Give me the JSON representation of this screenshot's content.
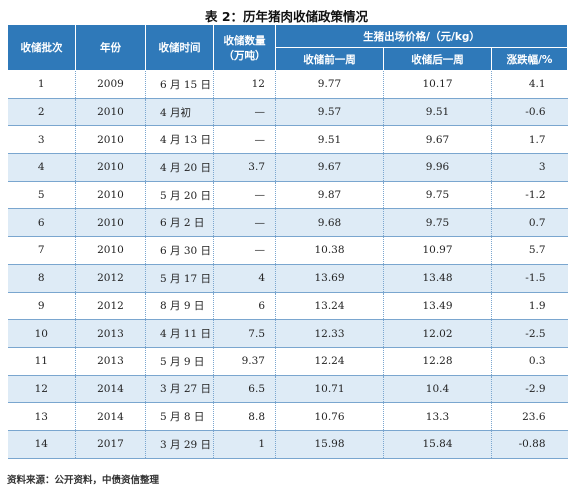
{
  "title": "表 2：历年猪肉收储政策情况",
  "headers": {
    "batch": "收储批次",
    "year": "年份",
    "time": "收储时间",
    "amount_line1": "收储数量",
    "amount_line2": "（万吨）",
    "price_group": "生猪出场价格/（元/kg）",
    "before": "收储前一周",
    "after": "收储后一周",
    "change": "涨跌幅/%"
  },
  "rows": [
    {
      "batch": "1",
      "year": "2009",
      "time": "6 月 15 日",
      "amount": "12",
      "before": "9.77",
      "after": "10.17",
      "change": "4.1"
    },
    {
      "batch": "2",
      "year": "2010",
      "time": "4 月初",
      "amount": "—",
      "before": "9.57",
      "after": "9.51",
      "change": "-0.6"
    },
    {
      "batch": "3",
      "year": "2010",
      "time": "4 月 13 日",
      "amount": "—",
      "before": "9.51",
      "after": "9.67",
      "change": "1.7"
    },
    {
      "batch": "4",
      "year": "2010",
      "time": "4 月 20 日",
      "amount": "3.7",
      "before": "9.67",
      "after": "9.96",
      "change": "3"
    },
    {
      "batch": "5",
      "year": "2010",
      "time": "5 月 20 日",
      "amount": "—",
      "before": "9.87",
      "after": "9.75",
      "change": "-1.2"
    },
    {
      "batch": "6",
      "year": "2010",
      "time": "6 月 2 日",
      "amount": "—",
      "before": "9.68",
      "after": "9.75",
      "change": "0.7"
    },
    {
      "batch": "7",
      "year": "2010",
      "time": "6 月 30 日",
      "amount": "—",
      "before": "10.38",
      "after": "10.97",
      "change": "5.7"
    },
    {
      "batch": "8",
      "year": "2012",
      "time": "5 月 17 日",
      "amount": "4",
      "before": "13.69",
      "after": "13.48",
      "change": "-1.5"
    },
    {
      "batch": "9",
      "year": "2012",
      "time": "8 月 9 日",
      "amount": "6",
      "before": "13.24",
      "after": "13.49",
      "change": "1.9"
    },
    {
      "batch": "10",
      "year": "2013",
      "time": "4 月 11 日",
      "amount": "7.5",
      "before": "12.33",
      "after": "12.02",
      "change": "-2.5"
    },
    {
      "batch": "11",
      "year": "2013",
      "time": "5 月 9 日",
      "amount": "9.37",
      "before": "12.24",
      "after": "12.28",
      "change": "0.3"
    },
    {
      "batch": "12",
      "year": "2014",
      "time": "3 月 27 日",
      "amount": "6.5",
      "before": "10.71",
      "after": "10.4",
      "change": "-2.9"
    },
    {
      "batch": "13",
      "year": "2014",
      "time": "5 月 8 日",
      "amount": "8.8",
      "before": "10.76",
      "after": "13.3",
      "change": "23.6"
    },
    {
      "batch": "14",
      "year": "2017",
      "time": "3 月 29 日",
      "amount": "1",
      "before": "15.98",
      "after": "15.84",
      "change": "-0.88"
    }
  ],
  "source": "资料来源：公开资料，中债资信整理"
}
